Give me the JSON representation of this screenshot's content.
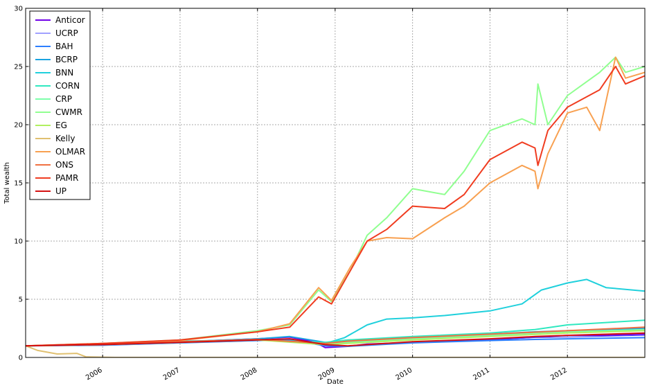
{
  "chart_data": {
    "type": "line",
    "title": "",
    "xlabel": "Date",
    "ylabel": "Total wealth",
    "xlim": [
      "2005-01-03",
      "2012-12-31"
    ],
    "ylim": [
      0,
      30
    ],
    "x_ticks": [
      "2006",
      "2007",
      "2008",
      "2009",
      "2010",
      "2011",
      "2012"
    ],
    "y_ticks": [
      0,
      5,
      10,
      15,
      20,
      25,
      30
    ],
    "grid": true,
    "legend_position": "top-left",
    "series": [
      {
        "name": "Anticor",
        "color": "#7000e8",
        "width": 2,
        "points": [
          [
            "2005-01-03",
            1.0
          ],
          [
            "2006-01-01",
            1.1
          ],
          [
            "2007-01-01",
            1.3
          ],
          [
            "2007-06-01",
            1.45
          ],
          [
            "2008-01-01",
            1.6
          ],
          [
            "2008-06-01",
            1.75
          ],
          [
            "2008-10-01",
            1.3
          ],
          [
            "2008-11-15",
            0.85
          ],
          [
            "2009-03-01",
            0.95
          ],
          [
            "2009-06-01",
            1.15
          ],
          [
            "2010-01-01",
            1.3
          ],
          [
            "2011-01-01",
            1.5
          ],
          [
            "2011-08-01",
            1.75
          ],
          [
            "2012-01-01",
            1.9
          ],
          [
            "2012-07-01",
            1.9
          ],
          [
            "2012-12-31",
            2.0
          ]
        ]
      },
      {
        "name": "UCRP",
        "color": "#4040ff",
        "width": 1,
        "points": [
          [
            "2005-01-03",
            1.0
          ],
          [
            "2006-01-01",
            1.1
          ],
          [
            "2007-01-01",
            1.3
          ],
          [
            "2008-01-01",
            1.5
          ],
          [
            "2008-06-01",
            1.6
          ],
          [
            "2008-11-15",
            1.05
          ],
          [
            "2009-03-01",
            0.95
          ],
          [
            "2010-01-01",
            1.3
          ],
          [
            "2011-01-01",
            1.5
          ],
          [
            "2011-08-01",
            1.7
          ],
          [
            "2012-01-01",
            1.75
          ],
          [
            "2012-12-31",
            1.9
          ]
        ]
      },
      {
        "name": "BAH",
        "color": "#2c7fff",
        "width": 2,
        "points": [
          [
            "2005-01-03",
            1.0
          ],
          [
            "2006-01-01",
            1.05
          ],
          [
            "2007-01-01",
            1.25
          ],
          [
            "2008-01-01",
            1.45
          ],
          [
            "2008-06-01",
            1.5
          ],
          [
            "2008-11-15",
            1.0
          ],
          [
            "2009-03-01",
            0.95
          ],
          [
            "2010-01-01",
            1.25
          ],
          [
            "2011-01-01",
            1.45
          ],
          [
            "2011-08-01",
            1.55
          ],
          [
            "2012-01-01",
            1.6
          ],
          [
            "2012-12-31",
            1.7
          ]
        ]
      },
      {
        "name": "BCRP",
        "color": "#1aa3e0",
        "width": 2,
        "points": [
          [
            "2005-01-03",
            1.0
          ],
          [
            "2006-01-01",
            1.15
          ],
          [
            "2007-01-01",
            1.35
          ],
          [
            "2008-01-01",
            1.6
          ],
          [
            "2008-06-01",
            1.8
          ],
          [
            "2008-11-15",
            1.3
          ],
          [
            "2009-03-01",
            1.4
          ],
          [
            "2010-01-01",
            1.7
          ],
          [
            "2011-01-01",
            2.0
          ],
          [
            "2011-08-01",
            2.2
          ],
          [
            "2012-01-01",
            2.3
          ],
          [
            "2012-12-31",
            2.5
          ]
        ]
      },
      {
        "name": "BNN",
        "color": "#1fd0dc",
        "width": 2,
        "points": [
          [
            "2005-01-03",
            1.0
          ],
          [
            "2006-01-01",
            1.15
          ],
          [
            "2007-01-01",
            1.4
          ],
          [
            "2008-01-01",
            1.5
          ],
          [
            "2008-11-15",
            1.2
          ],
          [
            "2009-02-15",
            1.7
          ],
          [
            "2009-06-01",
            2.8
          ],
          [
            "2009-09-01",
            3.3
          ],
          [
            "2010-01-01",
            3.4
          ],
          [
            "2010-06-01",
            3.6
          ],
          [
            "2011-01-01",
            4.0
          ],
          [
            "2011-06-01",
            4.6
          ],
          [
            "2011-09-01",
            5.8
          ],
          [
            "2012-01-01",
            6.4
          ],
          [
            "2012-04-01",
            6.7
          ],
          [
            "2012-07-01",
            6.0
          ],
          [
            "2012-12-31",
            5.7
          ]
        ]
      },
      {
        "name": "CORN",
        "color": "#2fe8c0",
        "width": 2,
        "points": [
          [
            "2005-01-03",
            1.0
          ],
          [
            "2006-01-01",
            1.1
          ],
          [
            "2007-01-01",
            1.3
          ],
          [
            "2008-01-01",
            1.5
          ],
          [
            "2008-11-15",
            1.3
          ],
          [
            "2009-03-01",
            1.5
          ],
          [
            "2010-01-01",
            1.8
          ],
          [
            "2011-01-01",
            2.1
          ],
          [
            "2011-08-01",
            2.4
          ],
          [
            "2012-01-01",
            2.8
          ],
          [
            "2012-07-01",
            3.0
          ],
          [
            "2012-12-31",
            3.2
          ]
        ]
      },
      {
        "name": "CRP",
        "color": "#7dffaa",
        "width": 2,
        "points": [
          [
            "2005-01-03",
            1.0
          ],
          [
            "2006-01-01",
            1.1
          ],
          [
            "2007-01-01",
            1.3
          ],
          [
            "2008-01-01",
            1.55
          ],
          [
            "2008-11-15",
            1.1
          ],
          [
            "2009-03-01",
            1.3
          ],
          [
            "2010-01-01",
            1.6
          ],
          [
            "2011-01-01",
            1.9
          ],
          [
            "2011-08-01",
            2.1
          ],
          [
            "2012-01-01",
            2.2
          ],
          [
            "2012-12-31",
            2.4
          ]
        ]
      },
      {
        "name": "CWMR",
        "color": "#90ff90",
        "width": 2,
        "points": [
          [
            "2005-01-03",
            1.0
          ],
          [
            "2006-01-01",
            1.2
          ],
          [
            "2007-01-01",
            1.5
          ],
          [
            "2008-01-01",
            2.3
          ],
          [
            "2008-06-01",
            2.8
          ],
          [
            "2008-10-15",
            5.8
          ],
          [
            "2008-12-15",
            4.8
          ],
          [
            "2009-03-15",
            7.5
          ],
          [
            "2009-06-01",
            10.5
          ],
          [
            "2009-09-01",
            12.0
          ],
          [
            "2010-01-01",
            14.5
          ],
          [
            "2010-06-01",
            14.0
          ],
          [
            "2010-09-01",
            16.0
          ],
          [
            "2011-01-01",
            19.5
          ],
          [
            "2011-06-01",
            20.5
          ],
          [
            "2011-08-01",
            20.0
          ],
          [
            "2011-08-15",
            23.5
          ],
          [
            "2011-10-01",
            20.0
          ],
          [
            "2012-01-01",
            22.5
          ],
          [
            "2012-06-01",
            24.5
          ],
          [
            "2012-08-15",
            25.8
          ],
          [
            "2012-10-01",
            24.5
          ],
          [
            "2012-12-31",
            25.0
          ]
        ]
      },
      {
        "name": "EG",
        "color": "#b0f060",
        "width": 2,
        "points": [
          [
            "2005-01-03",
            1.0
          ],
          [
            "2006-01-01",
            1.1
          ],
          [
            "2007-01-01",
            1.3
          ],
          [
            "2008-01-01",
            1.5
          ],
          [
            "2008-11-15",
            1.1
          ],
          [
            "2009-03-01",
            1.2
          ],
          [
            "2010-01-01",
            1.5
          ],
          [
            "2011-01-01",
            1.8
          ],
          [
            "2012-01-01",
            2.1
          ],
          [
            "2012-12-31",
            2.3
          ]
        ]
      },
      {
        "name": "Kelly",
        "color": "#e0c070",
        "width": 2,
        "points": [
          [
            "2005-01-03",
            1.0
          ],
          [
            "2005-03-01",
            0.6
          ],
          [
            "2005-06-01",
            0.3
          ],
          [
            "2005-09-01",
            0.35
          ],
          [
            "2005-10-15",
            0.05
          ],
          [
            "2006-03-01",
            0.0
          ],
          [
            "2012-12-31",
            0.0
          ]
        ]
      },
      {
        "name": "OLMAR",
        "color": "#f8a050",
        "width": 2,
        "points": [
          [
            "2005-01-03",
            1.0
          ],
          [
            "2006-01-01",
            1.2
          ],
          [
            "2007-01-01",
            1.45
          ],
          [
            "2008-01-01",
            2.2
          ],
          [
            "2008-06-01",
            2.9
          ],
          [
            "2008-10-15",
            6.0
          ],
          [
            "2008-12-15",
            4.9
          ],
          [
            "2009-03-15",
            7.8
          ],
          [
            "2009-06-01",
            10.0
          ],
          [
            "2009-09-01",
            10.3
          ],
          [
            "2010-01-01",
            10.2
          ],
          [
            "2010-06-01",
            12.0
          ],
          [
            "2010-09-01",
            13.0
          ],
          [
            "2011-01-01",
            15.0
          ],
          [
            "2011-06-01",
            16.5
          ],
          [
            "2011-08-01",
            16.0
          ],
          [
            "2011-08-15",
            14.5
          ],
          [
            "2011-10-01",
            17.5
          ],
          [
            "2012-01-01",
            21.0
          ],
          [
            "2012-04-01",
            21.5
          ],
          [
            "2012-06-01",
            19.5
          ],
          [
            "2012-08-15",
            25.8
          ],
          [
            "2012-10-01",
            24.0
          ],
          [
            "2012-12-31",
            24.5
          ]
        ]
      },
      {
        "name": "ONS",
        "color": "#f07040",
        "width": 2,
        "points": [
          [
            "2005-01-03",
            1.0
          ],
          [
            "2006-01-01",
            1.15
          ],
          [
            "2007-01-01",
            1.35
          ],
          [
            "2008-01-01",
            1.55
          ],
          [
            "2008-11-15",
            1.2
          ],
          [
            "2009-03-01",
            1.4
          ],
          [
            "2010-01-01",
            1.7
          ],
          [
            "2011-01-01",
            2.0
          ],
          [
            "2012-01-01",
            2.3
          ],
          [
            "2012-12-31",
            2.6
          ]
        ]
      },
      {
        "name": "PAMR",
        "color": "#f03c20",
        "width": 2,
        "points": [
          [
            "2005-01-03",
            1.0
          ],
          [
            "2006-01-01",
            1.2
          ],
          [
            "2007-01-01",
            1.5
          ],
          [
            "2008-01-01",
            2.2
          ],
          [
            "2008-06-01",
            2.6
          ],
          [
            "2008-10-15",
            5.2
          ],
          [
            "2008-12-15",
            4.6
          ],
          [
            "2009-03-15",
            7.5
          ],
          [
            "2009-06-01",
            10.0
          ],
          [
            "2009-09-01",
            11.0
          ],
          [
            "2010-01-01",
            13.0
          ],
          [
            "2010-06-01",
            12.8
          ],
          [
            "2010-09-01",
            14.0
          ],
          [
            "2011-01-01",
            17.0
          ],
          [
            "2011-06-01",
            18.5
          ],
          [
            "2011-08-01",
            18.0
          ],
          [
            "2011-08-15",
            16.5
          ],
          [
            "2011-10-01",
            19.5
          ],
          [
            "2012-01-01",
            21.5
          ],
          [
            "2012-06-01",
            23.0
          ],
          [
            "2012-08-15",
            25.0
          ],
          [
            "2012-10-01",
            23.5
          ],
          [
            "2012-12-31",
            24.2
          ]
        ]
      },
      {
        "name": "UP",
        "color": "#d41010",
        "width": 2,
        "points": [
          [
            "2005-01-03",
            1.0
          ],
          [
            "2006-01-01",
            1.1
          ],
          [
            "2007-01-01",
            1.3
          ],
          [
            "2008-01-01",
            1.5
          ],
          [
            "2008-06-01",
            1.6
          ],
          [
            "2008-11-15",
            1.1
          ],
          [
            "2009-03-01",
            1.0
          ],
          [
            "2010-01-01",
            1.35
          ],
          [
            "2011-01-01",
            1.6
          ],
          [
            "2011-08-01",
            1.8
          ],
          [
            "2012-01-01",
            1.9
          ],
          [
            "2012-12-31",
            2.1
          ]
        ]
      }
    ]
  }
}
